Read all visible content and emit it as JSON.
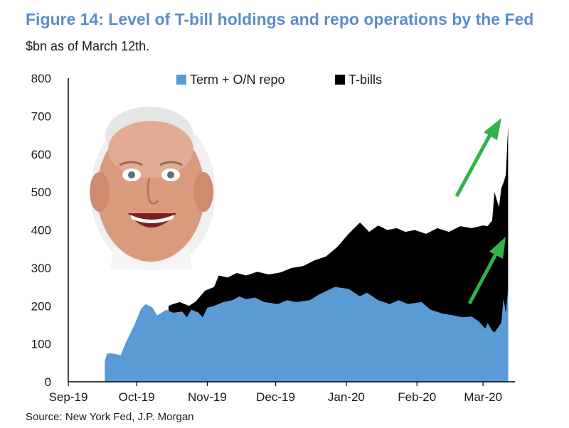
{
  "title": "Figure 14: Level of T-bill holdings and repo operations by the Fed",
  "subtitle": "$bn as of March 12th.",
  "source": "Source: New York Fed, J.P. Morgan",
  "colors": {
    "title": "#5b8ec9",
    "repo": "#5b9bd5",
    "tbills": "#000000",
    "arrow": "#2fb34a"
  },
  "chart_data": {
    "type": "area",
    "stacked": true,
    "ylim": [
      0,
      800
    ],
    "yticks": [
      0,
      100,
      200,
      300,
      400,
      500,
      600,
      700,
      800
    ],
    "xticks": [
      "Sep-19",
      "Oct-19",
      "Nov-19",
      "Dec-19",
      "Jan-20",
      "Feb-20",
      "Mar-20"
    ],
    "legend_position": "top",
    "series": [
      {
        "name": "Term + O/N repo",
        "color": "#5b9bd5",
        "points": [
          [
            "2019-09-17",
            0
          ],
          [
            "2019-09-17",
            53
          ],
          [
            "2019-09-18",
            75
          ],
          [
            "2019-09-20",
            75
          ],
          [
            "2019-09-24",
            70
          ],
          [
            "2019-09-26",
            100
          ],
          [
            "2019-09-30",
            150
          ],
          [
            "2019-10-03",
            193
          ],
          [
            "2019-10-05",
            205
          ],
          [
            "2019-10-08",
            195
          ],
          [
            "2019-10-10",
            175
          ],
          [
            "2019-10-14",
            190
          ],
          [
            "2019-10-17",
            182
          ],
          [
            "2019-10-21",
            185
          ],
          [
            "2019-10-23",
            170
          ],
          [
            "2019-10-25",
            190
          ],
          [
            "2019-10-28",
            183
          ],
          [
            "2019-10-30",
            170
          ],
          [
            "2019-11-01",
            195
          ],
          [
            "2019-11-04",
            200
          ],
          [
            "2019-11-08",
            210
          ],
          [
            "2019-11-12",
            215
          ],
          [
            "2019-11-15",
            225
          ],
          [
            "2019-11-18",
            218
          ],
          [
            "2019-11-22",
            222
          ],
          [
            "2019-11-26",
            210
          ],
          [
            "2019-12-02",
            205
          ],
          [
            "2019-12-06",
            215
          ],
          [
            "2019-12-10",
            210
          ],
          [
            "2019-12-16",
            215
          ],
          [
            "2019-12-20",
            230
          ],
          [
            "2019-12-27",
            250
          ],
          [
            "2020-01-02",
            245
          ],
          [
            "2020-01-07",
            225
          ],
          [
            "2020-01-10",
            235
          ],
          [
            "2020-01-15",
            215
          ],
          [
            "2020-01-20",
            205
          ],
          [
            "2020-01-24",
            215
          ],
          [
            "2020-01-28",
            205
          ],
          [
            "2020-02-03",
            210
          ],
          [
            "2020-02-07",
            190
          ],
          [
            "2020-02-12",
            180
          ],
          [
            "2020-02-17",
            175
          ],
          [
            "2020-02-21",
            170
          ],
          [
            "2020-02-25",
            172
          ],
          [
            "2020-02-28",
            160
          ],
          [
            "2020-03-02",
            140
          ],
          [
            "2020-03-03",
            155
          ],
          [
            "2020-03-05",
            135
          ],
          [
            "2020-03-06",
            130
          ],
          [
            "2020-03-09",
            155
          ],
          [
            "2020-03-10",
            220
          ],
          [
            "2020-03-11",
            180
          ],
          [
            "2020-03-12",
            245
          ],
          [
            "2020-03-12",
            0
          ]
        ]
      },
      {
        "name": "T-bills",
        "color": "#000000",
        "top_points": [
          [
            "2019-10-15",
            200
          ],
          [
            "2019-10-17",
            205
          ],
          [
            "2019-10-20",
            210
          ],
          [
            "2019-10-24",
            200
          ],
          [
            "2019-10-27",
            212
          ],
          [
            "2019-10-31",
            240
          ],
          [
            "2019-11-04",
            250
          ],
          [
            "2019-11-06",
            280
          ],
          [
            "2019-11-10",
            275
          ],
          [
            "2019-11-14",
            287
          ],
          [
            "2019-11-18",
            280
          ],
          [
            "2019-11-23",
            290
          ],
          [
            "2019-11-28",
            283
          ],
          [
            "2019-12-03",
            288
          ],
          [
            "2019-12-08",
            300
          ],
          [
            "2019-12-13",
            305
          ],
          [
            "2019-12-18",
            320
          ],
          [
            "2019-12-23",
            330
          ],
          [
            "2019-12-28",
            355
          ],
          [
            "2020-01-02",
            390
          ],
          [
            "2020-01-07",
            420
          ],
          [
            "2020-01-11",
            395
          ],
          [
            "2020-01-15",
            412
          ],
          [
            "2020-01-19",
            400
          ],
          [
            "2020-01-23",
            405
          ],
          [
            "2020-01-27",
            395
          ],
          [
            "2020-01-31",
            400
          ],
          [
            "2020-02-05",
            390
          ],
          [
            "2020-02-10",
            405
          ],
          [
            "2020-02-15",
            395
          ],
          [
            "2020-02-20",
            410
          ],
          [
            "2020-02-25",
            405
          ],
          [
            "2020-03-01",
            412
          ],
          [
            "2020-03-03",
            410
          ],
          [
            "2020-03-05",
            425
          ],
          [
            "2020-03-06",
            500
          ],
          [
            "2020-03-08",
            460
          ],
          [
            "2020-03-09",
            510
          ],
          [
            "2020-03-10",
            525
          ],
          [
            "2020-03-11",
            545
          ],
          [
            "2020-03-12",
            675
          ]
        ]
      }
    ]
  }
}
